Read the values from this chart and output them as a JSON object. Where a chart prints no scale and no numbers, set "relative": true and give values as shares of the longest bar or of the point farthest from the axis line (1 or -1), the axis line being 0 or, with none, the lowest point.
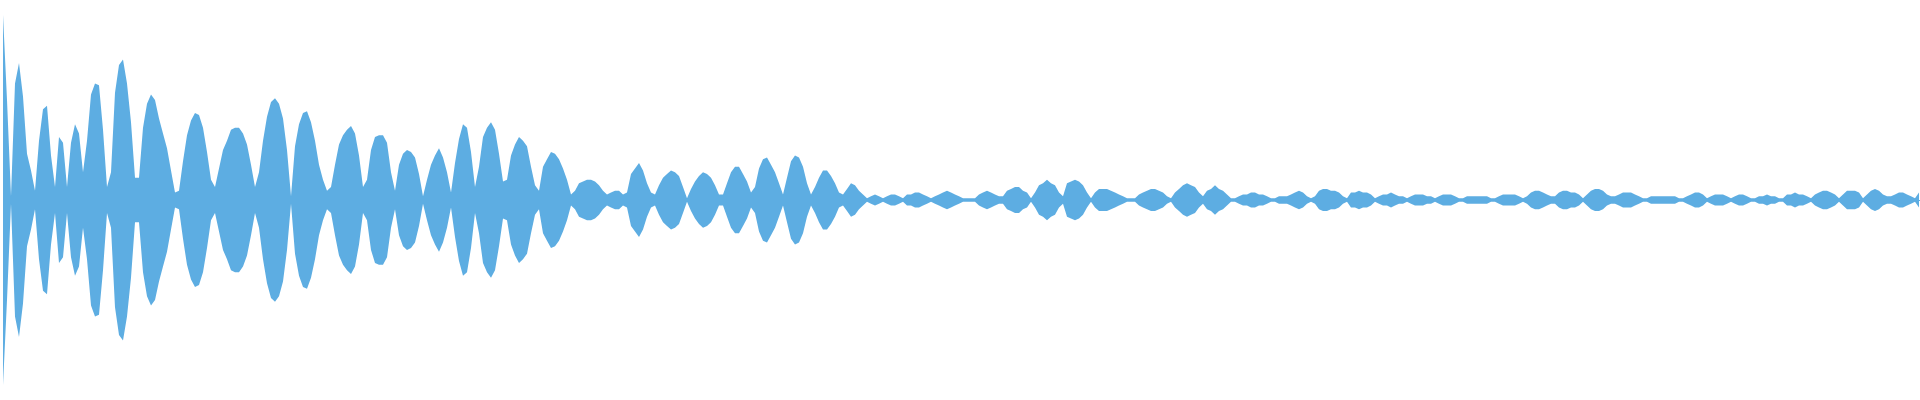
{
  "chart_data": {
    "type": "area",
    "relative": true,
    "categories": [
      null,
      null,
      null,
      null,
      null,
      null,
      null,
      null,
      null,
      null,
      null,
      null,
      null,
      null,
      null,
      null,
      null,
      null,
      null,
      null,
      null,
      null,
      null,
      null,
      null,
      null,
      null,
      null,
      null,
      null,
      null,
      null,
      null,
      null,
      null,
      null,
      null,
      null,
      null,
      null,
      null,
      null,
      null,
      null,
      null,
      null,
      null,
      null,
      null,
      null,
      null,
      null,
      null,
      null,
      null,
      null,
      null,
      null,
      null,
      null,
      null,
      null,
      null,
      null,
      null,
      null,
      null,
      null,
      null,
      null,
      null,
      null,
      null,
      null,
      null,
      null,
      null,
      null,
      null,
      null,
      null,
      null,
      null,
      null,
      null,
      null,
      null,
      null,
      null,
      null,
      null,
      null,
      null,
      null,
      null,
      null,
      null,
      null,
      null,
      null,
      null,
      null,
      null,
      null,
      null,
      null,
      null,
      null,
      null,
      null,
      null,
      null,
      null,
      null,
      null,
      null,
      null,
      null,
      null,
      null,
      null,
      null,
      null,
      null,
      null,
      null,
      null,
      null,
      null,
      null,
      null,
      null,
      null,
      null,
      null,
      null,
      null,
      null,
      null,
      null,
      null,
      null,
      null,
      null,
      null,
      null,
      null,
      null,
      null,
      null,
      null,
      null,
      null,
      null,
      null,
      null,
      null,
      null,
      null,
      null,
      null,
      null,
      null,
      null,
      null,
      null,
      null,
      null,
      null,
      null,
      null,
      null,
      null,
      null,
      null,
      null,
      null,
      null,
      null,
      null,
      null,
      null,
      null,
      null,
      null,
      null,
      null,
      null,
      null,
      null,
      null,
      null,
      null,
      null,
      null,
      null,
      null,
      null,
      null,
      null,
      null,
      null,
      null,
      null,
      null,
      null,
      null,
      null,
      null,
      null,
      null,
      null,
      null,
      null,
      null,
      null,
      null,
      null,
      null,
      null,
      null,
      null,
      null,
      null,
      null,
      null,
      null,
      null,
      null,
      null,
      null,
      null,
      null,
      null,
      null,
      null,
      null,
      null,
      null,
      null,
      null,
      null,
      null,
      null,
      null,
      null,
      null,
      null,
      null,
      null,
      null,
      null,
      null,
      null,
      null,
      null,
      null,
      null,
      null,
      null,
      null,
      null,
      null,
      null,
      null,
      null,
      null,
      null,
      null,
      null,
      null,
      null,
      null,
      null,
      null,
      null,
      null,
      null,
      null,
      null,
      null,
      null,
      null,
      null,
      null,
      null,
      null,
      null,
      null,
      null,
      null,
      null,
      null,
      null,
      null,
      null,
      null,
      null,
      null,
      null,
      null,
      null,
      null,
      null,
      null,
      null,
      null,
      null,
      null,
      null,
      null,
      null,
      null,
      null,
      null,
      null,
      null,
      null,
      null,
      null,
      null,
      null,
      null,
      null,
      null,
      null,
      null,
      null,
      null,
      null,
      null,
      null,
      null,
      null,
      null,
      null,
      null,
      null,
      null,
      null,
      null,
      null,
      null,
      null,
      null,
      null,
      null,
      null,
      null,
      null,
      null,
      null,
      null,
      null,
      null,
      null,
      null,
      null,
      null,
      null,
      null,
      null,
      null,
      null,
      null,
      null,
      null,
      null,
      null,
      null,
      null,
      null,
      null,
      null,
      null,
      null,
      null,
      null,
      null,
      null,
      null,
      null,
      null,
      null,
      null,
      null,
      null,
      null,
      null,
      null,
      null,
      null,
      null,
      null,
      null,
      null,
      null,
      null,
      null,
      null,
      null,
      null,
      null,
      null,
      null,
      null,
      null,
      null,
      null,
      null,
      null,
      null,
      null,
      null,
      null,
      null,
      null,
      null,
      null,
      null,
      null,
      null,
      null,
      null,
      null,
      null,
      null,
      null,
      null,
      null,
      null,
      null,
      null,
      null,
      null,
      null,
      null,
      null,
      null,
      null,
      null,
      null,
      null,
      null,
      null,
      null,
      null,
      null,
      null,
      null,
      null,
      null,
      null,
      null,
      null,
      null,
      null,
      null,
      null,
      null,
      null,
      null,
      null,
      null,
      null,
      null,
      null,
      null,
      null,
      null,
      null,
      null,
      null,
      null,
      null,
      null,
      null,
      null,
      null,
      null
    ],
    "series": [
      {
        "color": "#5dade2",
        "values": [
          1.0,
          0.54,
          0.02,
          0.63,
          0.74,
          0.56,
          0.25,
          0.16,
          0.05,
          0.32,
          0.49,
          0.51,
          0.24,
          0.07,
          0.34,
          0.31,
          0.07,
          0.31,
          0.41,
          0.36,
          0.15,
          0.32,
          0.57,
          0.63,
          0.62,
          0.38,
          0.07,
          0.15,
          0.58,
          0.73,
          0.76,
          0.63,
          0.42,
          0.12,
          0.12,
          0.39,
          0.52,
          0.57,
          0.54,
          0.44,
          0.36,
          0.28,
          0.16,
          0.04,
          0.05,
          0.21,
          0.35,
          0.43,
          0.47,
          0.46,
          0.39,
          0.26,
          0.11,
          0.07,
          0.17,
          0.27,
          0.32,
          0.38,
          0.39,
          0.39,
          0.36,
          0.3,
          0.19,
          0.07,
          0.15,
          0.32,
          0.45,
          0.53,
          0.55,
          0.52,
          0.44,
          0.27,
          0.02,
          0.29,
          0.41,
          0.47,
          0.48,
          0.42,
          0.32,
          0.19,
          0.11,
          0.05,
          0.07,
          0.19,
          0.3,
          0.35,
          0.38,
          0.4,
          0.36,
          0.24,
          0.07,
          0.11,
          0.27,
          0.34,
          0.35,
          0.35,
          0.31,
          0.15,
          0.05,
          0.19,
          0.25,
          0.27,
          0.26,
          0.23,
          0.14,
          0.02,
          0.11,
          0.19,
          0.24,
          0.28,
          0.23,
          0.15,
          0.04,
          0.2,
          0.33,
          0.41,
          0.39,
          0.26,
          0.07,
          0.18,
          0.34,
          0.39,
          0.42,
          0.38,
          0.25,
          0.1,
          0.11,
          0.24,
          0.3,
          0.34,
          0.32,
          0.29,
          0.18,
          0.08,
          0.05,
          0.18,
          0.22,
          0.26,
          0.25,
          0.22,
          0.17,
          0.11,
          0.03,
          0.05,
          0.09,
          0.1,
          0.11,
          0.11,
          0.1,
          0.08,
          0.05,
          0.03,
          0.04,
          0.05,
          0.05,
          0.03,
          0.04,
          0.14,
          0.17,
          0.2,
          0.16,
          0.09,
          0.04,
          0.03,
          0.08,
          0.12,
          0.14,
          0.16,
          0.15,
          0.13,
          0.07,
          0.01,
          0.06,
          0.1,
          0.13,
          0.15,
          0.14,
          0.12,
          0.08,
          0.03,
          0.03,
          0.09,
          0.15,
          0.18,
          0.18,
          0.14,
          0.1,
          0.04,
          0.07,
          0.17,
          0.22,
          0.23,
          0.19,
          0.15,
          0.09,
          0.03,
          0.12,
          0.21,
          0.24,
          0.23,
          0.18,
          0.09,
          0.03,
          0.07,
          0.12,
          0.16,
          0.16,
          0.13,
          0.09,
          0.04,
          0.03,
          0.06,
          0.09,
          0.08,
          0.05,
          0.03,
          0.01,
          0.02,
          0.03,
          0.02,
          0.01,
          0.02,
          0.03,
          0.03,
          0.02,
          0.01,
          0.03,
          0.03,
          0.04,
          0.04,
          0.03,
          0.02,
          0.01,
          0.02,
          0.03,
          0.04,
          0.05,
          0.04,
          0.03,
          0.02,
          0.01,
          0.01,
          0.01,
          0.01,
          0.03,
          0.04,
          0.05,
          0.04,
          0.03,
          0.02,
          0.02,
          0.05,
          0.06,
          0.07,
          0.07,
          0.05,
          0.04,
          0.01,
          0.04,
          0.08,
          0.09,
          0.11,
          0.09,
          0.08,
          0.04,
          0.02,
          0.09,
          0.1,
          0.11,
          0.1,
          0.08,
          0.04,
          0.01,
          0.04,
          0.06,
          0.06,
          0.06,
          0.05,
          0.04,
          0.03,
          0.02,
          0.01,
          0.01,
          0.01,
          0.03,
          0.04,
          0.05,
          0.06,
          0.06,
          0.05,
          0.04,
          0.02,
          0.01,
          0.04,
          0.06,
          0.08,
          0.09,
          0.08,
          0.07,
          0.04,
          0.02,
          0.05,
          0.06,
          0.08,
          0.06,
          0.05,
          0.03,
          0.01,
          0.01,
          0.02,
          0.03,
          0.03,
          0.04,
          0.04,
          0.03,
          0.03,
          0.02,
          0.01,
          0.01,
          0.02,
          0.02,
          0.02,
          0.03,
          0.04,
          0.05,
          0.04,
          0.02,
          0.01,
          0.02,
          0.05,
          0.06,
          0.06,
          0.05,
          0.05,
          0.04,
          0.02,
          0.01,
          0.04,
          0.04,
          0.05,
          0.04,
          0.04,
          0.03,
          0.01,
          0.02,
          0.03,
          0.03,
          0.04,
          0.03,
          0.02,
          0.02,
          0.01,
          0.02,
          0.03,
          0.03,
          0.03,
          0.02,
          0.02,
          0.01,
          0.02,
          0.03,
          0.03,
          0.03,
          0.02,
          0.01,
          0.01,
          0.02,
          0.02,
          0.02,
          0.02,
          0.02,
          0.02,
          0.01,
          0.01,
          0.02,
          0.03,
          0.03,
          0.03,
          0.03,
          0.02,
          0.01,
          0.02,
          0.04,
          0.05,
          0.05,
          0.04,
          0.03,
          0.02,
          0.02,
          0.04,
          0.05,
          0.05,
          0.04,
          0.04,
          0.03,
          0.01,
          0.03,
          0.05,
          0.06,
          0.06,
          0.05,
          0.03,
          0.02,
          0.02,
          0.03,
          0.04,
          0.04,
          0.04,
          0.03,
          0.02,
          0.01,
          0.01,
          0.02,
          0.02,
          0.02,
          0.02,
          0.02,
          0.02,
          0.02,
          0.01,
          0.01,
          0.02,
          0.03,
          0.04,
          0.04,
          0.03,
          0.01,
          0.02,
          0.03,
          0.03,
          0.03,
          0.02,
          0.01,
          0.02,
          0.03,
          0.03,
          0.02,
          0.01,
          0.01,
          0.02,
          0.02,
          0.03,
          0.02,
          0.02,
          0.01,
          0.01,
          0.03,
          0.03,
          0.04,
          0.03,
          0.03,
          0.02,
          0.01,
          0.03,
          0.04,
          0.05,
          0.05,
          0.04,
          0.03,
          0.01,
          0.03,
          0.05,
          0.05,
          0.05,
          0.04,
          0.01,
          0.03,
          0.05,
          0.06,
          0.05,
          0.03,
          0.02,
          0.02,
          0.03,
          0.04,
          0.04,
          0.03,
          0.02,
          0.01,
          0.04
        ]
      },
      {
        "color": "#5dade2",
        "values": [
          -1.0,
          -0.54,
          -0.02,
          -0.63,
          -0.74,
          -0.56,
          -0.25,
          -0.16,
          -0.05,
          -0.32,
          -0.49,
          -0.51,
          -0.24,
          -0.07,
          -0.34,
          -0.31,
          -0.07,
          -0.31,
          -0.41,
          -0.36,
          -0.15,
          -0.32,
          -0.57,
          -0.63,
          -0.62,
          -0.38,
          -0.07,
          -0.15,
          -0.58,
          -0.73,
          -0.76,
          -0.63,
          -0.42,
          -0.12,
          -0.12,
          -0.39,
          -0.52,
          -0.57,
          -0.54,
          -0.44,
          -0.36,
          -0.28,
          -0.16,
          -0.04,
          -0.05,
          -0.21,
          -0.35,
          -0.43,
          -0.47,
          -0.46,
          -0.39,
          -0.26,
          -0.11,
          -0.07,
          -0.17,
          -0.27,
          -0.32,
          -0.38,
          -0.39,
          -0.39,
          -0.36,
          -0.3,
          -0.19,
          -0.07,
          -0.15,
          -0.32,
          -0.45,
          -0.53,
          -0.55,
          -0.52,
          -0.44,
          -0.27,
          -0.02,
          -0.29,
          -0.41,
          -0.47,
          -0.48,
          -0.42,
          -0.32,
          -0.19,
          -0.11,
          -0.05,
          -0.07,
          -0.19,
          -0.3,
          -0.35,
          -0.38,
          -0.4,
          -0.36,
          -0.24,
          -0.07,
          -0.11,
          -0.27,
          -0.34,
          -0.35,
          -0.35,
          -0.31,
          -0.15,
          -0.05,
          -0.19,
          -0.25,
          -0.27,
          -0.26,
          -0.23,
          -0.14,
          -0.02,
          -0.11,
          -0.19,
          -0.24,
          -0.28,
          -0.23,
          -0.15,
          -0.04,
          -0.2,
          -0.33,
          -0.41,
          -0.39,
          -0.26,
          -0.07,
          -0.18,
          -0.34,
          -0.39,
          -0.42,
          -0.38,
          -0.25,
          -0.1,
          -0.11,
          -0.24,
          -0.3,
          -0.34,
          -0.32,
          -0.29,
          -0.18,
          -0.08,
          -0.05,
          -0.18,
          -0.22,
          -0.26,
          -0.25,
          -0.22,
          -0.17,
          -0.11,
          -0.03,
          -0.05,
          -0.09,
          -0.1,
          -0.11,
          -0.11,
          -0.1,
          -0.08,
          -0.05,
          -0.03,
          -0.04,
          -0.05,
          -0.05,
          -0.03,
          -0.04,
          -0.14,
          -0.17,
          -0.2,
          -0.16,
          -0.09,
          -0.04,
          -0.03,
          -0.08,
          -0.12,
          -0.14,
          -0.16,
          -0.15,
          -0.13,
          -0.07,
          -0.01,
          -0.06,
          -0.1,
          -0.13,
          -0.15,
          -0.14,
          -0.12,
          -0.08,
          -0.03,
          -0.03,
          -0.09,
          -0.15,
          -0.18,
          -0.18,
          -0.14,
          -0.1,
          -0.04,
          -0.07,
          -0.17,
          -0.22,
          -0.23,
          -0.19,
          -0.15,
          -0.09,
          -0.03,
          -0.12,
          -0.21,
          -0.24,
          -0.23,
          -0.18,
          -0.09,
          -0.03,
          -0.07,
          -0.12,
          -0.16,
          -0.16,
          -0.13,
          -0.09,
          -0.04,
          -0.03,
          -0.06,
          -0.09,
          -0.08,
          -0.05,
          -0.03,
          -0.01,
          -0.02,
          -0.03,
          -0.02,
          -0.01,
          -0.02,
          -0.03,
          -0.03,
          -0.02,
          -0.01,
          -0.03,
          -0.03,
          -0.04,
          -0.04,
          -0.03,
          -0.02,
          -0.01,
          -0.02,
          -0.03,
          -0.04,
          -0.05,
          -0.04,
          -0.03,
          -0.02,
          -0.01,
          -0.01,
          -0.01,
          -0.01,
          -0.03,
          -0.04,
          -0.05,
          -0.04,
          -0.03,
          -0.02,
          -0.02,
          -0.05,
          -0.06,
          -0.07,
          -0.07,
          -0.05,
          -0.04,
          -0.01,
          -0.04,
          -0.08,
          -0.09,
          -0.11,
          -0.09,
          -0.08,
          -0.04,
          -0.02,
          -0.09,
          -0.1,
          -0.11,
          -0.1,
          -0.08,
          -0.04,
          -0.01,
          -0.04,
          -0.06,
          -0.06,
          -0.06,
          -0.05,
          -0.04,
          -0.03,
          -0.02,
          -0.01,
          -0.01,
          -0.01,
          -0.03,
          -0.04,
          -0.05,
          -0.06,
          -0.06,
          -0.05,
          -0.04,
          -0.02,
          -0.01,
          -0.04,
          -0.06,
          -0.08,
          -0.09,
          -0.08,
          -0.07,
          -0.04,
          -0.02,
          -0.05,
          -0.06,
          -0.08,
          -0.06,
          -0.05,
          -0.03,
          -0.01,
          -0.01,
          -0.02,
          -0.03,
          -0.03,
          -0.04,
          -0.04,
          -0.03,
          -0.03,
          -0.02,
          -0.01,
          -0.01,
          -0.02,
          -0.02,
          -0.02,
          -0.03,
          -0.04,
          -0.05,
          -0.04,
          -0.02,
          -0.01,
          -0.02,
          -0.05,
          -0.06,
          -0.06,
          -0.05,
          -0.05,
          -0.04,
          -0.02,
          -0.01,
          -0.04,
          -0.04,
          -0.05,
          -0.04,
          -0.04,
          -0.03,
          -0.01,
          -0.02,
          -0.03,
          -0.03,
          -0.04,
          -0.03,
          -0.02,
          -0.02,
          -0.01,
          -0.02,
          -0.03,
          -0.03,
          -0.03,
          -0.02,
          -0.02,
          -0.01,
          -0.02,
          -0.03,
          -0.03,
          -0.03,
          -0.02,
          -0.01,
          -0.01,
          -0.02,
          -0.02,
          -0.02,
          -0.02,
          -0.02,
          -0.02,
          -0.01,
          -0.01,
          -0.02,
          -0.03,
          -0.03,
          -0.03,
          -0.03,
          -0.02,
          -0.01,
          -0.02,
          -0.04,
          -0.05,
          -0.05,
          -0.04,
          -0.03,
          -0.02,
          -0.02,
          -0.04,
          -0.05,
          -0.05,
          -0.04,
          -0.04,
          -0.03,
          -0.01,
          -0.03,
          -0.05,
          -0.06,
          -0.06,
          -0.05,
          -0.03,
          -0.02,
          -0.02,
          -0.03,
          -0.04,
          -0.04,
          -0.04,
          -0.03,
          -0.02,
          -0.01,
          -0.01,
          -0.02,
          -0.02,
          -0.02,
          -0.02,
          -0.02,
          -0.02,
          -0.02,
          -0.01,
          -0.01,
          -0.02,
          -0.03,
          -0.04,
          -0.04,
          -0.03,
          -0.01,
          -0.02,
          -0.03,
          -0.03,
          -0.03,
          -0.02,
          -0.01,
          -0.02,
          -0.03,
          -0.03,
          -0.02,
          -0.01,
          -0.01,
          -0.02,
          -0.02,
          -0.03,
          -0.02,
          -0.02,
          -0.01,
          -0.01,
          -0.03,
          -0.03,
          -0.04,
          -0.03,
          -0.03,
          -0.02,
          -0.01,
          -0.03,
          -0.04,
          -0.05,
          -0.05,
          -0.04,
          -0.03,
          -0.01,
          -0.03,
          -0.05,
          -0.05,
          -0.05,
          -0.04,
          -0.01,
          -0.03,
          -0.05,
          -0.06,
          -0.05,
          -0.03,
          -0.02,
          -0.02,
          -0.03,
          -0.04,
          -0.04,
          -0.03,
          -0.02,
          -0.01,
          -0.04
        ]
      }
    ]
  }
}
